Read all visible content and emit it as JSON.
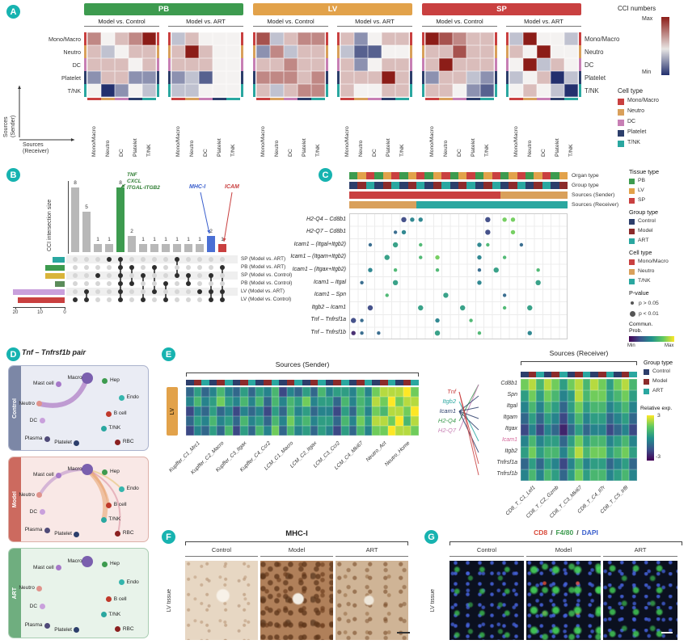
{
  "badges": [
    "A",
    "B",
    "C",
    "D",
    "E",
    "F",
    "G"
  ],
  "colors": {
    "badge": "#17b3b0",
    "organ": {
      "PB": "#3d9b4f",
      "LV": "#e2a24a",
      "SP": "#c94040"
    },
    "group": {
      "Control": "#2c3e6b",
      "Model": "#8c2b2b",
      "ART": "#2aa7a0"
    },
    "cell": {
      "Mono/Macro": "#c94040",
      "Neutro": "#d9a05b",
      "DC": "#c77fb4",
      "Platelet": "#2c3e6b",
      "T/NK": "#2aa7a0"
    }
  },
  "panelA": {
    "row_labels": [
      "Mono/Macro",
      "Neutro",
      "DC",
      "Platelet",
      "T/NK"
    ],
    "comparisons": [
      "Model vs. Control",
      "Model vs. ART"
    ],
    "organs": [
      {
        "name": "PB",
        "color": "#3d9b4f",
        "matrices": [
          [
            "64568",
            "53455",
            "55545",
            "25522",
            "40243"
          ],
          [
            "35444",
            "58544",
            "55544",
            "23144",
            "33444"
          ]
        ]
      },
      {
        "name": "LV",
        "color": "#e2a24a",
        "matrices": [
          [
            "73566",
            "26355",
            "55655",
            "66656",
            "53566"
          ],
          [
            "52455",
            "31144",
            "52455",
            "55585",
            "54455"
          ]
        ]
      },
      {
        "name": "SP",
        "color": "#c94040",
        "matrices": [
          [
            "87655",
            "55755",
            "58555",
            "25532",
            "55421"
          ],
          [
            "38443",
            "54844",
            "48354",
            "34503",
            "45430"
          ]
        ]
      }
    ],
    "axis": {
      "sender1": "Sources",
      "sender2": "(Sender)",
      "receiver1": "Sources",
      "receiver2": "(Receiver)"
    },
    "legend": {
      "cci": "CCI numbers",
      "max": "Max",
      "min": "Min",
      "cell_title": "Cell type",
      "cells": [
        [
          "Mono/Macro",
          "#c94040"
        ],
        [
          "Neutro",
          "#d9a05b"
        ],
        [
          "DC",
          "#c77fb4"
        ],
        [
          "Platelet",
          "#2c3e6b"
        ],
        [
          "T/NK",
          "#2aa7a0"
        ]
      ]
    }
  },
  "panelB": {
    "ylabel": "CCI intersection size",
    "bars": [
      8,
      5,
      1,
      1,
      8,
      2,
      1,
      1,
      1,
      1,
      1,
      1,
      2,
      1
    ],
    "bar_colors": {
      "4": "#3d9b4f",
      "12": "#4a6fd4",
      "13": "#c94040"
    },
    "bar_default": "#b8b8b8",
    "membership": [
      [
        5
      ],
      [
        4,
        5
      ],
      [
        2
      ],
      [
        0
      ],
      [
        0,
        1,
        2,
        3,
        4,
        5
      ],
      [
        1,
        3
      ],
      [
        2,
        5
      ],
      [
        1,
        4
      ],
      [
        3,
        5
      ],
      [
        0,
        2
      ],
      [
        2,
        3
      ],
      [
        4
      ],
      [
        2,
        4,
        5
      ],
      [
        1,
        4,
        5
      ]
    ],
    "sets": [
      [
        "SP (Model vs. ART)",
        5,
        "#2aa7a0"
      ],
      [
        "PB (Model vs. ART)",
        8,
        "#3d9b4f"
      ],
      [
        "SP (Model vs. Control)",
        8,
        "#d9b43a"
      ],
      [
        "PB (Model vs. Control)",
        4,
        "#5b8c5a"
      ],
      [
        "LV (Model vs. ART)",
        21,
        "#c9a0dc"
      ],
      [
        "LV (Model vs. Control)",
        19,
        "#c94040"
      ]
    ],
    "set_axis": [
      "20",
      "10",
      "0"
    ],
    "ann": {
      "pathways": [
        "TNF",
        "CXCL",
        "ITGAL-ITGB2"
      ],
      "pathways_color": "#2e7d32",
      "mhc": "MHC-I",
      "mhc_color": "#3a5fcd",
      "icam": "ICAM",
      "icam_color": "#c94040"
    }
  },
  "panelC": {
    "ann_labels": [
      "Organ type",
      "Group type",
      "Sources (Sender)",
      "Sources (Receiver)"
    ],
    "ann_rows": [
      "PLSPLSPLSPLSPLSPLSPLSPLSPL",
      "CMACMACMACMACMACMACMACMACM",
      "RRRRRRRRRRRRRRRRRRNNNNNNNN",
      "NNNNNNNNTTTTTTTTTTTTTTTTTT"
    ],
    "ann_colors": {
      "P": "#3d9b4f",
      "L": "#e2a24a",
      "S": "#c94040",
      "C": "#2c3e6b",
      "M": "#8c2b2b",
      "A": "#2aa7a0",
      "R": "#c94040",
      "N": "#d9a05b",
      "T": "#2aa7a0"
    },
    "pairs": [
      "H2-Q4 – Cd8b1",
      "H2-Q7 – Cd8b1",
      "Icam1 – (Itgal+Itgb2)",
      "Icam1 – (Itgam+Itgb2)",
      "Icam1 – (Itgax+Itgb2)",
      "Icam1 – Itgal",
      "Icam1 – Spn",
      "Itgb2 – Icam1",
      "Tnf – Tnfrsf1a",
      "Tnf – Tnfrsf1b"
    ],
    "dots": [
      "......244.......2.77......",
      ".....34.........2..7......",
      "..3..5..6......46...3.....",
      "....5...6.7....4..6.......",
      "..4..6....6....3.5....6...",
      ".3...5.........4......5...",
      "....6......5......3.......",
      "..2.....5....5....6..5....",
      "23........4...6...........",
      "13.3......5....6.....4...."
    ],
    "legend": {
      "tissue_title": "Tissue type",
      "tissue": [
        [
          "PB",
          "#3d9b4f"
        ],
        [
          "LV",
          "#e2a24a"
        ],
        [
          "SP",
          "#c94040"
        ]
      ],
      "group_title": "Group type",
      "group": [
        [
          "Control",
          "#2c3e6b"
        ],
        [
          "Model",
          "#8c2b2b"
        ],
        [
          "ART",
          "#2aa7a0"
        ]
      ],
      "cell_title": "Cell type",
      "cell": [
        [
          "Mono/Macro",
          "#c94040"
        ],
        [
          "Neutro",
          "#d9a05b"
        ],
        [
          "T/NK",
          "#2aa7a0"
        ]
      ],
      "p_title": "P-value",
      "p_items": [
        "p > 0.05",
        "p < 0.01"
      ],
      "prob_title1": "Commun.",
      "prob_title2": "Prob.",
      "min": "Min",
      "max": "Max"
    }
  },
  "panelD": {
    "title": "Tnf – Tnfrsf1b pair",
    "nodes": [
      [
        "Mast cell",
        "#a678c9",
        30,
        22,
        "l",
        3.5
      ],
      [
        "Macro",
        "#7a5fae",
        52,
        15,
        "l",
        7
      ],
      [
        "Hep",
        "#3d9b4f",
        66,
        18,
        "r",
        3.5
      ],
      [
        "Neutro",
        "#e0938c",
        15,
        45,
        "l",
        3.5
      ],
      [
        "Endo",
        "#35b5ad",
        79,
        38,
        "r",
        3.5
      ],
      [
        "DC",
        "#c9a0dc",
        17,
        65,
        "l",
        3.5
      ],
      [
        "B cell",
        "#c0392b",
        69,
        57,
        "r",
        3.5
      ],
      [
        "Plasma",
        "#4f4a78",
        21,
        86,
        "l",
        3.5
      ],
      [
        "T/NK",
        "#2aa7a0",
        65,
        74,
        "r",
        3.5
      ],
      [
        "Platelet",
        "#2c3e6b",
        44,
        91,
        "l",
        3.5
      ],
      [
        "RBC",
        "#8b2020",
        76,
        90,
        "r",
        3.5
      ]
    ],
    "groups": [
      {
        "label": "Control",
        "strip": "#7c87a6",
        "bg": "#eaecf4",
        "border": "#aab2cc",
        "edges": [
          [
            "Neutro",
            "Macro",
            "#9b59b6",
            6,
            -0.45
          ]
        ]
      },
      {
        "label": "Model",
        "strip": "#cc6a5f",
        "bg": "#f9e8e6",
        "border": "#ddb0a8",
        "edges": [
          [
            "Macro",
            "T/NK",
            "#e8a06a",
            6,
            0.3
          ],
          [
            "Macro",
            "B cell",
            "#e8a06a",
            3,
            0.2
          ],
          [
            "Macro",
            "RBC",
            "#d98a9a",
            2,
            0.4
          ],
          [
            "Macro",
            "Neutro",
            "#b88ac9",
            4,
            -0.3
          ],
          [
            "Macro",
            "Endo",
            "#e3c06a",
            2,
            0.15
          ]
        ]
      },
      {
        "label": "ART",
        "strip": "#6fae7f",
        "bg": "#e8f3ea",
        "border": "#a8cdb2",
        "edges": []
      }
    ]
  },
  "panelE": {
    "sender_title": "Sources (Sender)",
    "receiver_title": "Sources (Receiver)",
    "lv_label": "LV",
    "sender_cols": [
      "Kupffer_C1_Mrc1",
      "Kupffer_C2_Macro",
      "Kupffer_C3_Itgax",
      "Kupffer_C4_Ccr2",
      "LCM_C1_Macro",
      "LCM_C2_Itgax",
      "LCM_C3_Ccr2",
      "LCM_C4_Mki67",
      "Neutro_Act",
      "Neutro_Home"
    ],
    "receiver_cols": [
      "CD8_T_C1_Lef1",
      "CD8_T_C2_Gzmb",
      "CD8_T_C3_Mki67",
      "CD8_T_C4_Il7r",
      "CD8_T_C5_Irf8"
    ],
    "ligands": [
      [
        "Tnf",
        "#c94040"
      ],
      [
        "Itgb2",
        "#2aa7a0"
      ],
      [
        "Icam1",
        "#2c3e6b"
      ],
      [
        "H2-Q4",
        "#3d9b4f"
      ],
      [
        "H2-Q7",
        "#c77fb4"
      ]
    ],
    "receptors": [
      [
        "Cd8b1",
        "#333333"
      ],
      [
        "Spn",
        "#333333"
      ],
      [
        "Itgal",
        "#333333"
      ],
      [
        "Itgam",
        "#333333"
      ],
      [
        "Itgax",
        "#333333"
      ],
      [
        "Icam1",
        "#d4689a"
      ],
      [
        "Itgb2",
        "#333333"
      ],
      [
        "Tnfrsf1a",
        "#333333"
      ],
      [
        "Tnfrsf1b",
        "#333333"
      ]
    ],
    "edges": [
      [
        "H2-Q4",
        "Cd8b1",
        "#3d9b4f"
      ],
      [
        "H2-Q7",
        "Cd8b1",
        "#c77fb4"
      ],
      [
        "Icam1",
        "Spn",
        "#2c3e6b"
      ],
      [
        "Icam1",
        "Itgal",
        "#2c3e6b"
      ],
      [
        "Icam1",
        "Itgam",
        "#2c3e6b"
      ],
      [
        "Icam1",
        "Itgax",
        "#2c3e6b"
      ],
      [
        "Icam1",
        "Itgb2",
        "#2c3e6b"
      ],
      [
        "Itgb2",
        "Icam1",
        "#2aa7a0"
      ],
      [
        "Tnf",
        "Tnfrsf1a",
        "#c94040"
      ],
      [
        "Tnf",
        "Tnfrsf1b",
        "#c94040"
      ]
    ],
    "sender_hm": [
      "353464353546243536455464788897",
      "464575464636465745536465879788",
      "243534243425364534425364768879",
      "354645364536475645536475887968",
      "243536253647364535425364779887"
    ],
    "receiver_hm": [
      "786875786875786",
      "575764586775675",
      "464653575664564",
      "353542464553453",
      "242431353442342",
      "464553575664564",
      "575664686775675",
      "353542464553453",
      "464653575664564"
    ],
    "legend": {
      "group_title": "Group type",
      "group": [
        [
          "Control",
          "#2c3e6b"
        ],
        [
          "Model",
          "#8c2b2b"
        ],
        [
          "ART",
          "#2aa7a0"
        ]
      ],
      "rel_title": "Relative exp.",
      "rel_max": "3",
      "rel_min": "-3"
    }
  },
  "panelF": {
    "title": "MHC-I",
    "cols": [
      "Control",
      "Model",
      "ART"
    ],
    "row": "LV tissue"
  },
  "panelG": {
    "title_parts": [
      [
        "CD8",
        "#d94a3a"
      ],
      [
        "/",
        "#444444"
      ],
      [
        "F4/80",
        "#3d9b4f"
      ],
      [
        "/",
        "#444444"
      ],
      [
        "DAPI",
        "#3a5fcd"
      ]
    ],
    "cols": [
      "Control",
      "Model",
      "ART"
    ],
    "row": "LV tissue"
  }
}
